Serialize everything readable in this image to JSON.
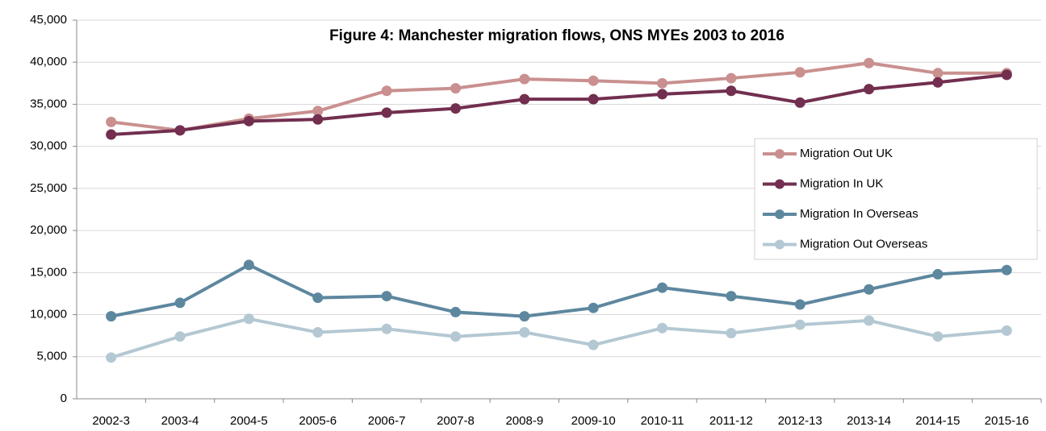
{
  "chart_data": {
    "type": "line",
    "title": "Figure 4: Manchester migration flows, ONS MYEs 2003 to 2016",
    "categories": [
      "2002-3",
      "2003-4",
      "2004-5",
      "2005-6",
      "2006-7",
      "2007-8",
      "2008-9",
      "2009-10",
      "2010-11",
      "2011-12",
      "2012-13",
      "2013-14",
      "2014-15",
      "2015-16"
    ],
    "series": [
      {
        "name": "Migration Out UK",
        "color": "#c9908f",
        "values": [
          32900,
          31900,
          33300,
          34200,
          36600,
          36900,
          38000,
          37800,
          37500,
          38100,
          38800,
          39900,
          38700,
          38700
        ]
      },
      {
        "name": "Migration In UK",
        "color": "#722f4f",
        "values": [
          31400,
          31900,
          33000,
          33200,
          34000,
          34500,
          35600,
          35600,
          36200,
          36600,
          35200,
          36800,
          37600,
          38500
        ]
      },
      {
        "name": "Migration In Overseas",
        "color": "#5d879e",
        "values": [
          9800,
          11400,
          15900,
          12000,
          12200,
          10300,
          9800,
          10800,
          13200,
          12200,
          11200,
          13000,
          14800,
          15300
        ]
      },
      {
        "name": "Migration Out Overseas",
        "color": "#b4c8d3",
        "values": [
          4900,
          7400,
          9500,
          7900,
          8300,
          7400,
          7900,
          6400,
          8400,
          7800,
          8800,
          9300,
          7400,
          8100
        ]
      }
    ],
    "ylim": [
      0,
      45000
    ],
    "yticks": [
      0,
      {
        "value": 5000,
        "label": "5,000"
      },
      {
        "value": 10000,
        "label": "10,000"
      },
      {
        "value": 15000,
        "label": "15,000"
      },
      {
        "value": 20000,
        "label": "20,000"
      },
      {
        "value": 25000,
        "label": "25,000"
      },
      {
        "value": 30000,
        "label": "30,000"
      },
      {
        "value": 35000,
        "label": "35,000"
      },
      {
        "value": 40000,
        "label": "40,000"
      },
      {
        "value": 45000,
        "label": "45,000"
      }
    ],
    "grid": true,
    "legend": "right"
  }
}
